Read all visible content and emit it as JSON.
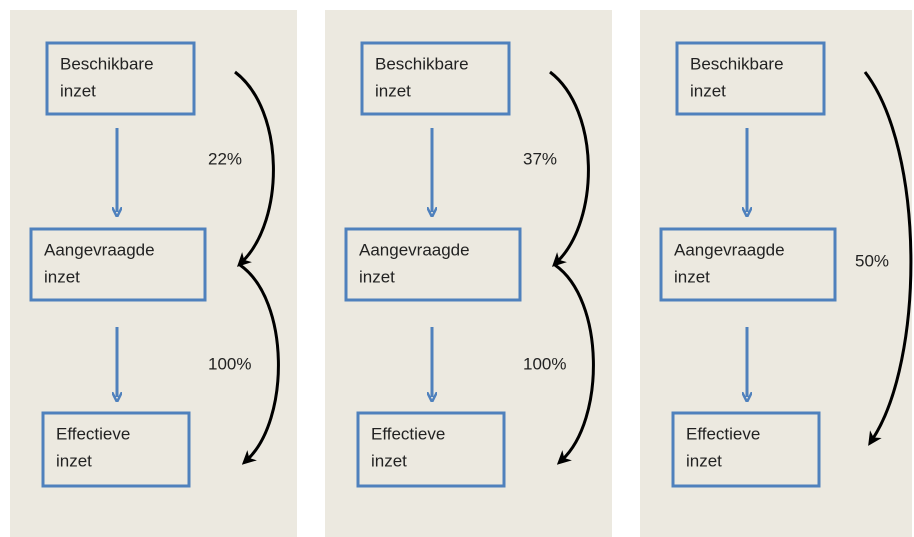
{
  "panels": [
    {
      "boxes": [
        [
          "Beschikbare",
          "inzet"
        ],
        [
          "Aangevraagde",
          "inzet"
        ],
        [
          "Effectieve",
          "inzet"
        ]
      ],
      "labels": [
        "22%",
        "100%"
      ]
    },
    {
      "boxes": [
        [
          "Beschikbare",
          "inzet"
        ],
        [
          "Aangevraagde",
          "inzet"
        ],
        [
          "Effectieve",
          "inzet"
        ]
      ],
      "labels": [
        "37%",
        "100%"
      ]
    },
    {
      "boxes": [
        [
          "Beschikbare",
          "inzet"
        ],
        [
          "Aangevraagde",
          "inzet"
        ],
        [
          "Effectieve",
          "inzet"
        ]
      ],
      "labels": [
        "50%"
      ]
    }
  ]
}
